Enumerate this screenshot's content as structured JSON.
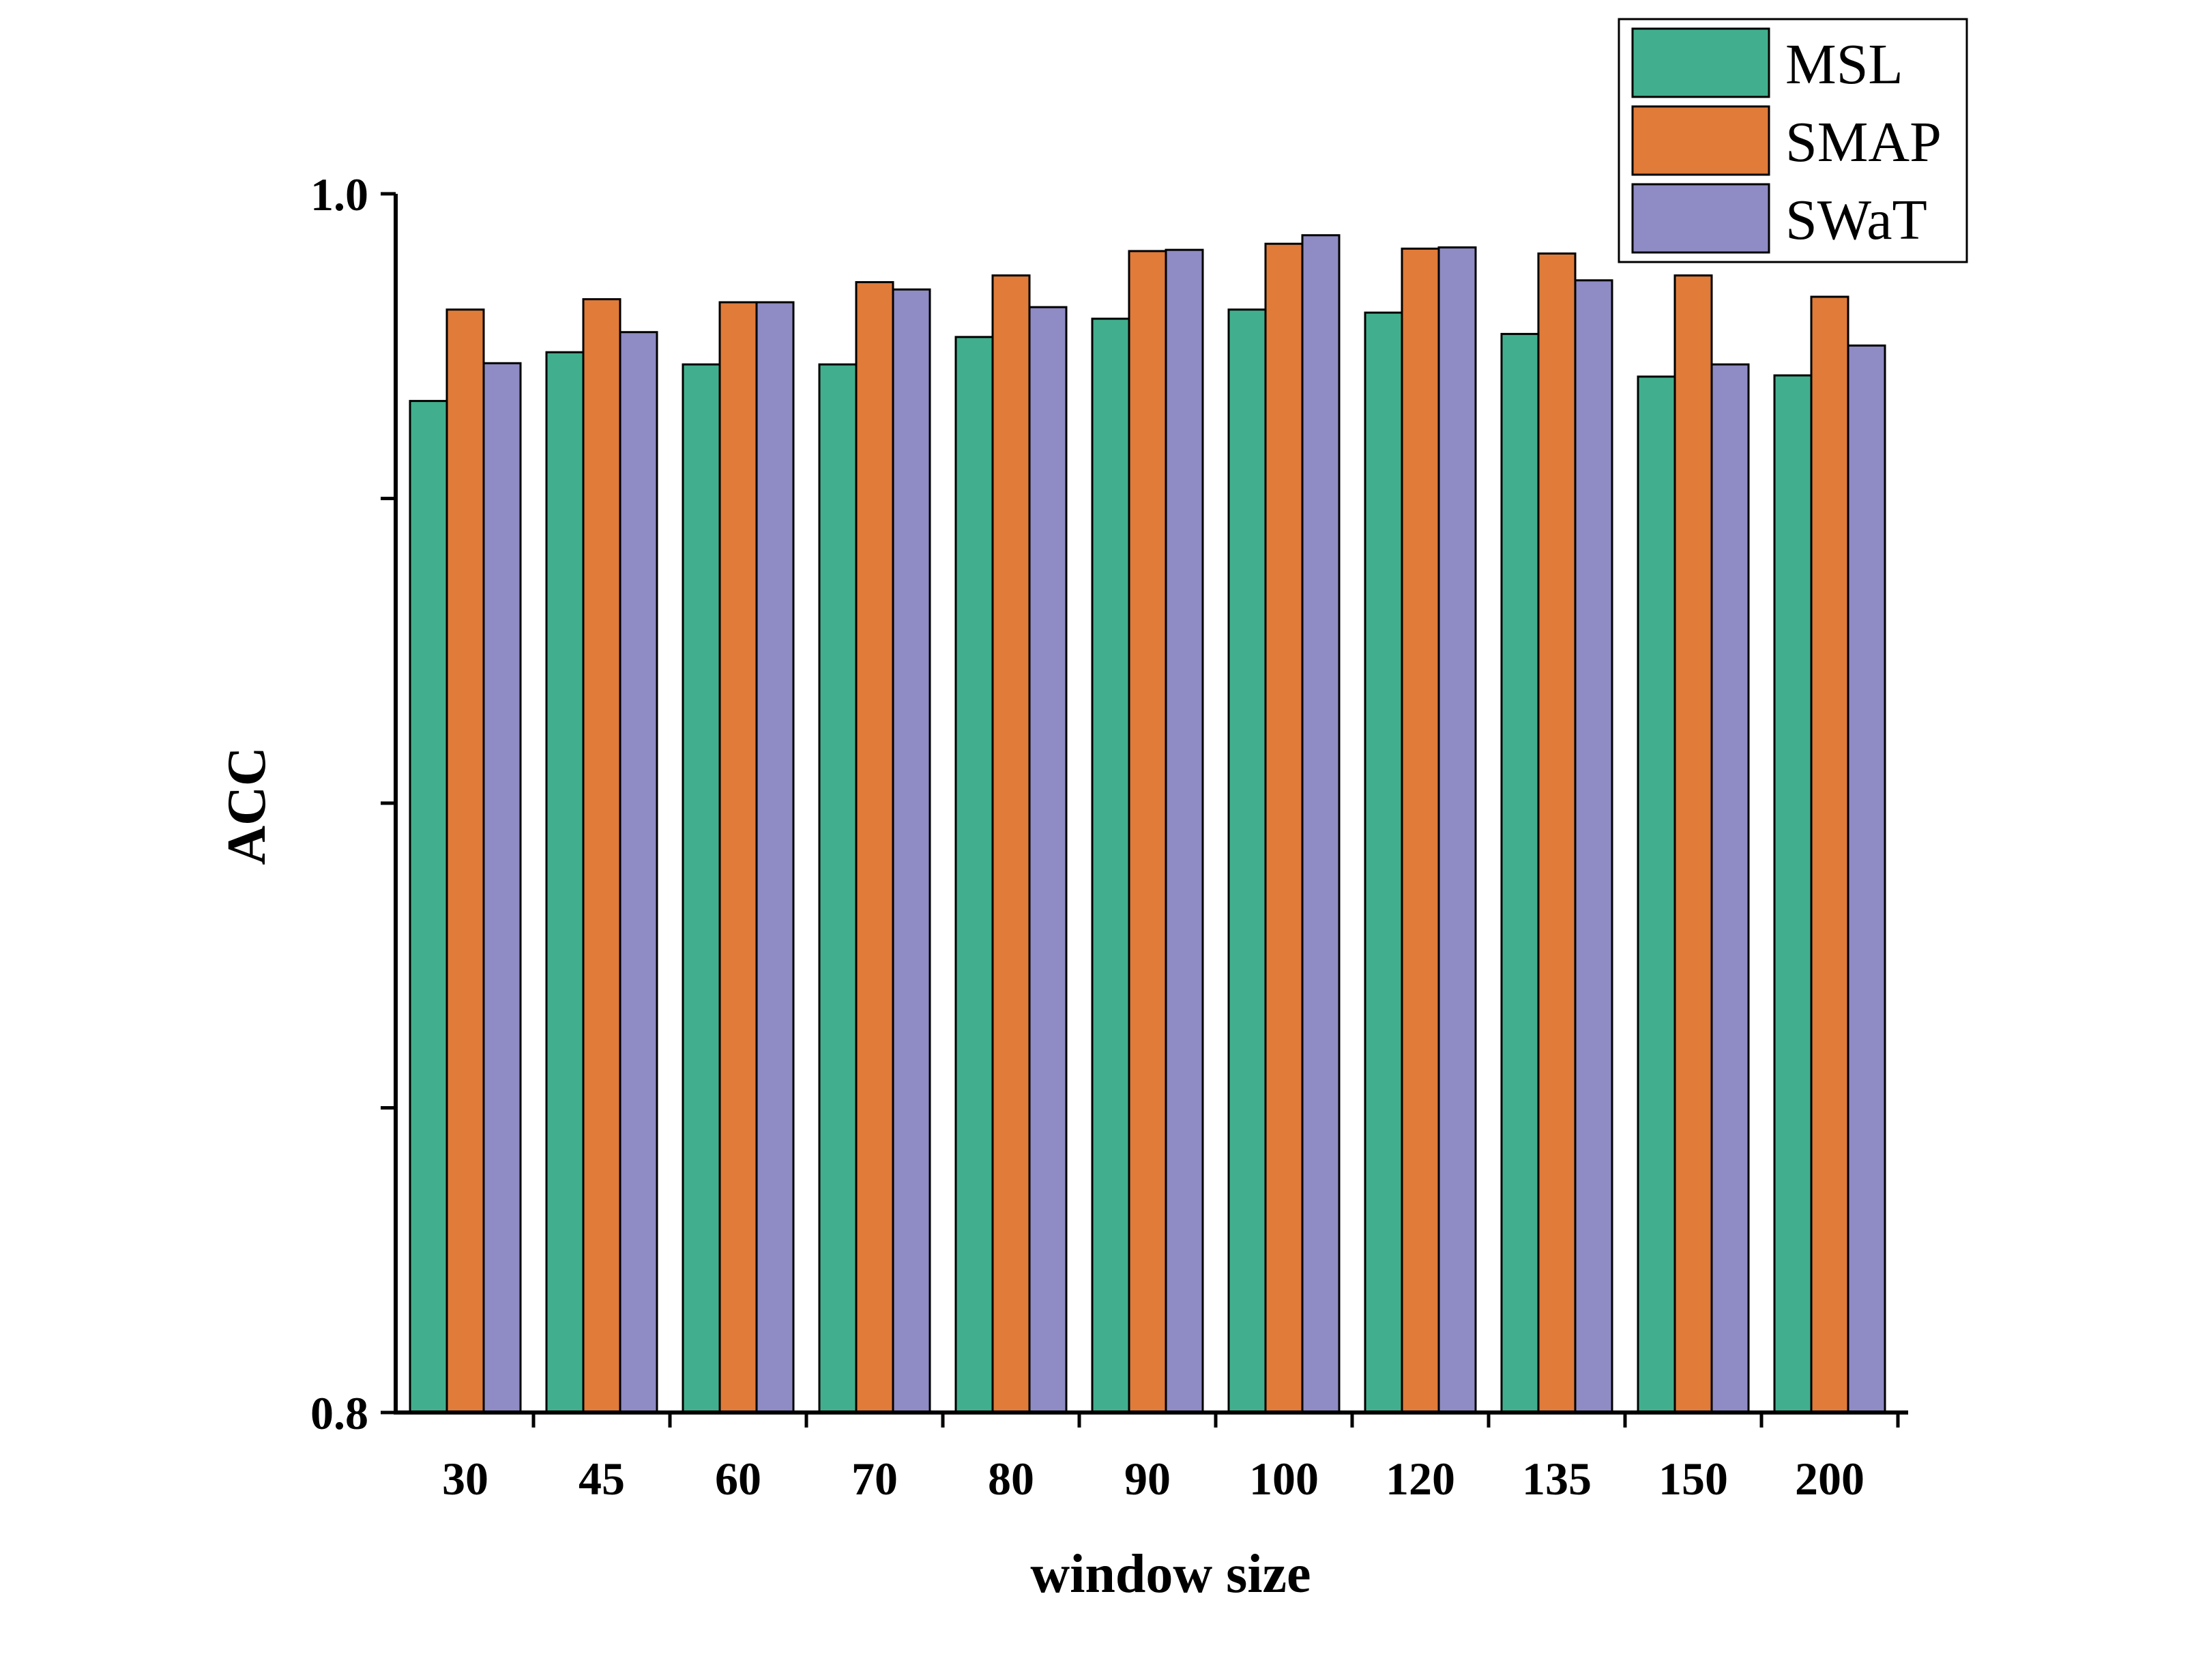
{
  "chart_data": {
    "type": "bar",
    "title": "",
    "xlabel": "window size",
    "ylabel": "ACC",
    "ylim": [
      0.8,
      1.0
    ],
    "yticks_labeled": [
      "1.0",
      "0.8"
    ],
    "categories": [
      "30",
      "45",
      "60",
      "70",
      "80",
      "90",
      "100",
      "120",
      "135",
      "150",
      "200"
    ],
    "series": [
      {
        "name": "MSL",
        "color": "#41AF8D",
        "values": [
          0.966,
          0.974,
          0.972,
          0.972,
          0.9765,
          0.9795,
          0.981,
          0.9805,
          0.977,
          0.97,
          0.9702
        ]
      },
      {
        "name": "SMAP",
        "color": "#E07B39",
        "values": [
          0.981,
          0.9827,
          0.9822,
          0.9855,
          0.9866,
          0.9906,
          0.9918,
          0.991,
          0.9902,
          0.9866,
          0.9831
        ]
      },
      {
        "name": "SWaT",
        "color": "#8F8BC4",
        "values": [
          0.9722,
          0.9773,
          0.9822,
          0.9843,
          0.9814,
          0.9908,
          0.9932,
          0.9912,
          0.9858,
          0.972,
          0.9751
        ]
      }
    ],
    "legend": "top-right",
    "grid": false
  }
}
